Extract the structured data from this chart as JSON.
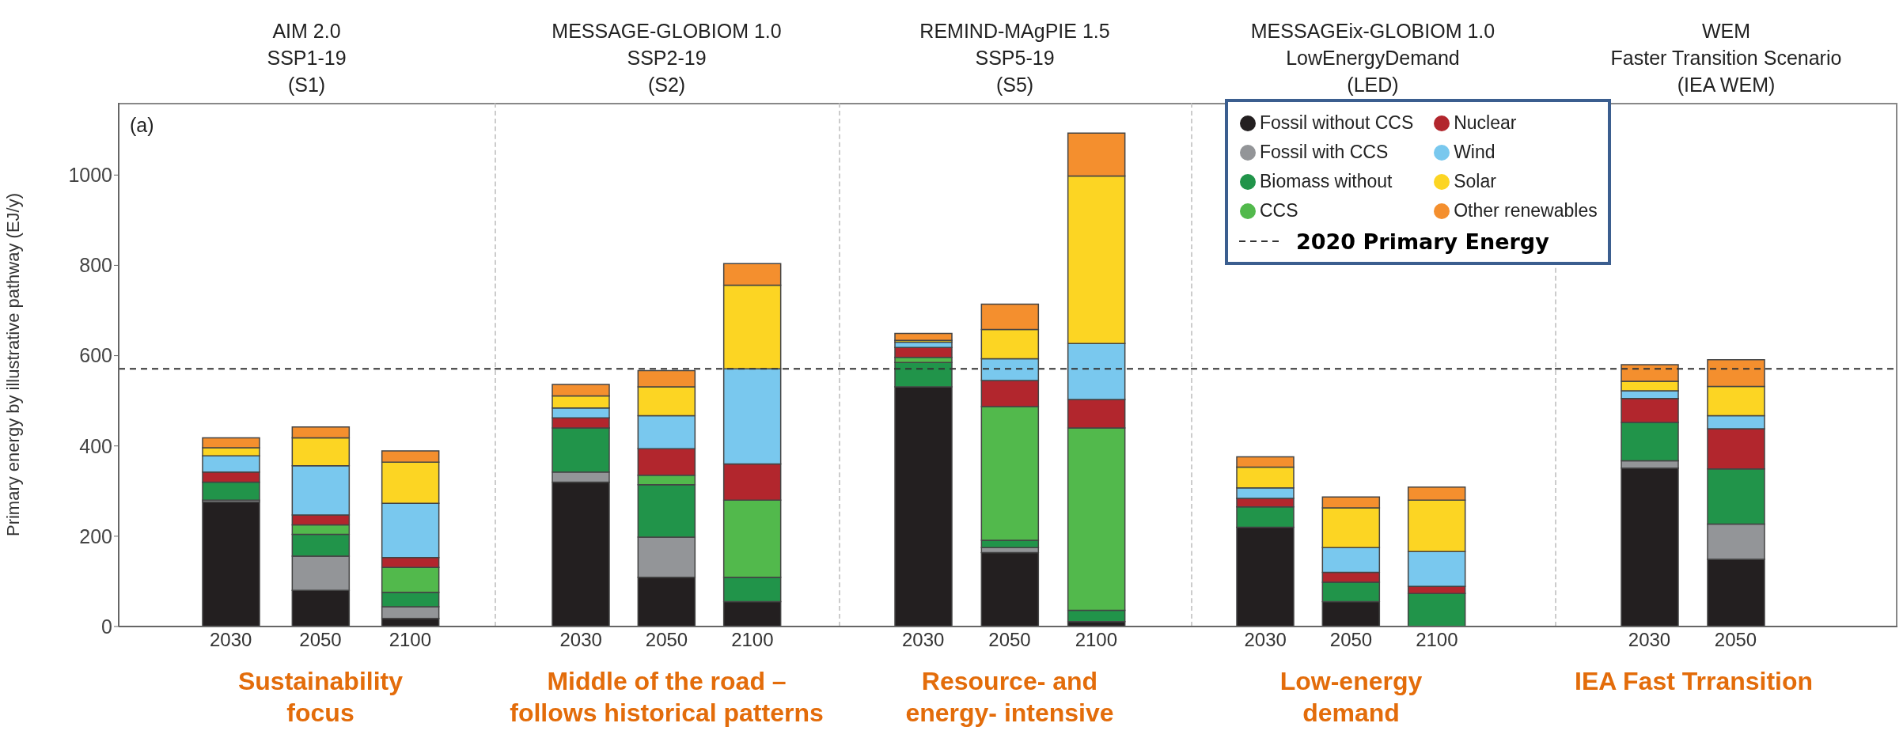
{
  "chart_data": [
    {
      "type": "bar",
      "stacked": true,
      "title": "AIM 2.0\nSSP1-19\n(S1)",
      "xlabel": "Sustainability\nfocus",
      "ylabel": "Primary energy by illustrative pathway (EJ/y)",
      "categories": [
        "2030",
        "2050",
        "2100"
      ],
      "ylim": [
        0,
        1160
      ],
      "yticks": [
        0,
        200,
        400,
        600,
        800,
        1000
      ],
      "annotations": [
        "(a)"
      ],
      "ref_lines": [
        {
          "axis": "y",
          "value": 571,
          "color": "#333333",
          "line_style": "dashed"
        }
      ],
      "series": [
        {
          "color": "#231f20",
          "values": [
            276,
            80,
            18
          ]
        },
        {
          "color": "#939598",
          "values": [
            4,
            76,
            26
          ]
        },
        {
          "color": "#21944a",
          "values": [
            40,
            48,
            32
          ]
        },
        {
          "color": "#52b94c",
          "values": [
            0,
            21,
            55
          ]
        },
        {
          "color": "#b2262d",
          "values": [
            22,
            22,
            22
          ]
        },
        {
          "color": "#79c8ee",
          "values": [
            36,
            109,
            120
          ]
        },
        {
          "color": "#fcd523",
          "values": [
            18,
            62,
            91
          ]
        },
        {
          "color": "#f48f2e",
          "values": [
            22,
            24,
            25
          ]
        }
      ]
    },
    {
      "type": "bar",
      "stacked": true,
      "title": "MESSAGE-GLOBIOM 1.0\nSSP2-19\n(S2)",
      "xlabel": "Middle of the road –\nfollows historical patterns",
      "categories": [
        "2030",
        "2050",
        "2100"
      ],
      "ylim": [
        0,
        1160
      ],
      "yticks": [
        0,
        200,
        400,
        600,
        800,
        1000
      ],
      "tick_labels": "x",
      "ref_lines": [
        {
          "axis": "y",
          "value": 571,
          "color": "#333333",
          "line_style": "dashed"
        }
      ],
      "series": [
        {
          "color": "#231f20",
          "values": [
            320,
            109,
            55
          ]
        },
        {
          "color": "#939598",
          "values": [
            22,
            89,
            0
          ]
        },
        {
          "color": "#21944a",
          "values": [
            98,
            116,
            54
          ]
        },
        {
          "color": "#52b94c",
          "values": [
            0,
            21,
            171
          ]
        },
        {
          "color": "#b2262d",
          "values": [
            22,
            59,
            80
          ]
        },
        {
          "color": "#79c8ee",
          "values": [
            22,
            73,
            211
          ]
        },
        {
          "color": "#fcd523",
          "values": [
            27,
            64,
            185
          ]
        },
        {
          "color": "#f48f2e",
          "values": [
            25,
            36,
            48
          ]
        }
      ]
    },
    {
      "type": "bar",
      "stacked": true,
      "title": "REMIND-MAgPIE 1.5\nSSP5-19\n(S5)",
      "xlabel": "Resource- and\nenergy- intensive",
      "categories": [
        "2030",
        "2050",
        "2100"
      ],
      "ylim": [
        0,
        1160
      ],
      "yticks": [
        0,
        200,
        400,
        600,
        800,
        1000
      ],
      "tick_labels": "x",
      "ref_lines": [
        {
          "axis": "y",
          "value": 571,
          "color": "#333333",
          "line_style": "dashed"
        }
      ],
      "series": [
        {
          "color": "#231f20",
          "values": [
            531,
            164,
            11
          ]
        },
        {
          "color": "#939598",
          "values": [
            0,
            11,
            0
          ]
        },
        {
          "color": "#21944a",
          "values": [
            54,
            16,
            25
          ]
        },
        {
          "color": "#52b94c",
          "values": [
            11,
            296,
            404
          ]
        },
        {
          "color": "#b2262d",
          "values": [
            22,
            58,
            63
          ]
        },
        {
          "color": "#79c8ee",
          "values": [
            12,
            48,
            124
          ]
        },
        {
          "color": "#fcd523",
          "values": [
            4,
            65,
            371
          ]
        },
        {
          "color": "#f48f2e",
          "values": [
            15,
            56,
            95
          ]
        }
      ]
    },
    {
      "type": "bar",
      "stacked": true,
      "title": "MESSAGEix-GLOBIOM 1.0\nLowEnergyDemand\n(LED)",
      "xlabel": "Low-energy\ndemand",
      "categories": [
        "2030",
        "2050",
        "2100"
      ],
      "ylim": [
        0,
        1160
      ],
      "yticks": [
        0,
        200,
        400,
        600,
        800,
        1000
      ],
      "tick_labels": "x",
      "legend": "top right",
      "ref_lines": [
        {
          "axis": "y",
          "value": 571,
          "label": "2020 Primary Energy",
          "color": "#333333",
          "line_style": "dashed"
        }
      ],
      "series": [
        {
          "name": "Fossil without CCS",
          "color": "#231f20",
          "values": [
            220,
            55,
            0
          ]
        },
        {
          "name": "Fossil with CCS",
          "color": "#939598",
          "values": [
            0,
            0,
            0
          ]
        },
        {
          "name": "Biomass without",
          "color": "#21944a",
          "values": [
            45,
            43,
            73
          ]
        },
        {
          "name": "CCS",
          "color": "#52b94c",
          "values": [
            0,
            0,
            0
          ]
        },
        {
          "name": "Nuclear",
          "color": "#b2262d",
          "values": [
            19,
            22,
            16
          ]
        },
        {
          "name": "Wind",
          "color": "#79c8ee",
          "values": [
            23,
            55,
            77
          ]
        },
        {
          "name": "Solar",
          "color": "#fcd523",
          "values": [
            46,
            88,
            114
          ]
        },
        {
          "name": "Other renewables",
          "color": "#f48f2e",
          "values": [
            23,
            24,
            29
          ]
        }
      ]
    },
    {
      "type": "bar",
      "stacked": true,
      "title": "WEM\nFaster Transition Scenario\n(IEA WEM)",
      "xlabel": "IEA Fast Trransition",
      "categories": [
        "2030",
        "2050"
      ],
      "ylim": [
        0,
        1160
      ],
      "yticks": [
        0,
        200,
        400,
        600,
        800,
        1000
      ],
      "tick_labels": "x",
      "ref_lines": [
        {
          "axis": "y",
          "value": 571,
          "color": "#333333",
          "line_style": "dashed"
        }
      ],
      "series": [
        {
          "color": "#231f20",
          "values": [
            351,
            149
          ]
        },
        {
          "color": "#939598",
          "values": [
            16,
            78
          ]
        },
        {
          "color": "#21944a",
          "values": [
            85,
            122
          ]
        },
        {
          "color": "#52b94c",
          "values": [
            0,
            0
          ]
        },
        {
          "color": "#b2262d",
          "values": [
            53,
            89
          ]
        },
        {
          "color": "#79c8ee",
          "values": [
            17,
            29
          ]
        },
        {
          "color": "#fcd523",
          "values": [
            21,
            65
          ]
        },
        {
          "color": "#f48f2e",
          "values": [
            37,
            59
          ]
        }
      ]
    }
  ]
}
